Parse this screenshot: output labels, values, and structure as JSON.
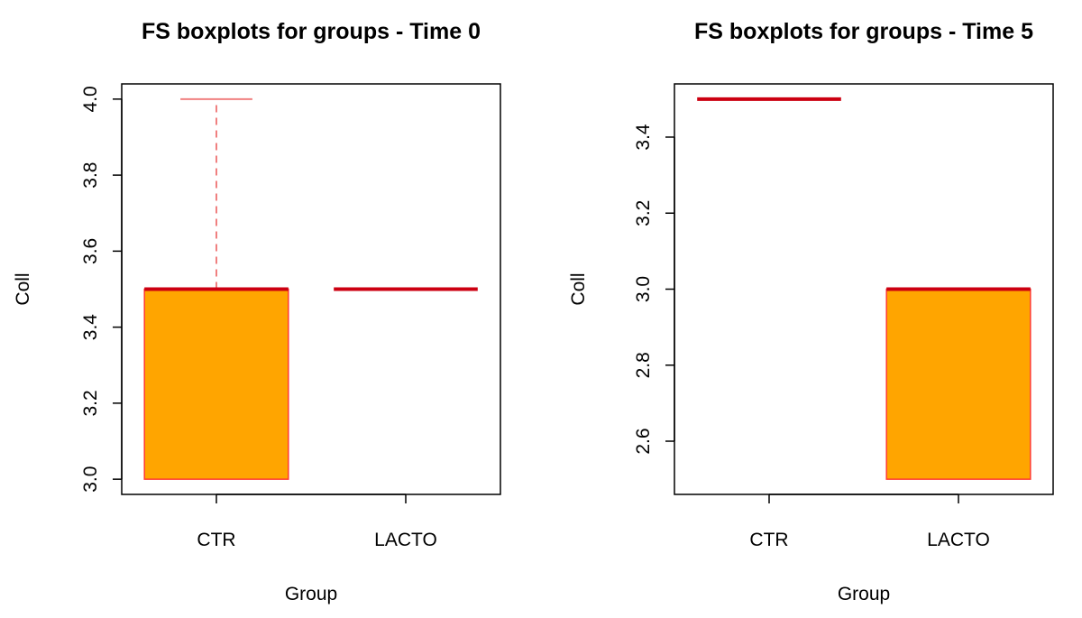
{
  "colors": {
    "box_fill": "#FFA500",
    "box_border": "#FF3B30",
    "median": "#CC0011",
    "whisker": "#F08080",
    "axis": "#000000"
  },
  "chart_data": [
    {
      "type": "boxplot",
      "title": "FS boxplots for groups - Time 0",
      "xlabel": "Group",
      "ylabel": "Coll",
      "categories": [
        "CTR",
        "LACTO"
      ],
      "ylim": [
        2.96,
        4.04
      ],
      "yticks": [
        3.0,
        3.2,
        3.4,
        3.6,
        3.8,
        4.0
      ],
      "ytick_labels": [
        "3.0",
        "3.2",
        "3.4",
        "3.6",
        "3.8",
        "4.0"
      ],
      "boxes": [
        {
          "category": "CTR",
          "min": 3.0,
          "q1": 3.0,
          "median": 3.5,
          "q3": 3.5,
          "max": 4.0
        },
        {
          "category": "LACTO",
          "min": 3.5,
          "q1": 3.5,
          "median": 3.5,
          "q3": 3.5,
          "max": 3.5
        }
      ],
      "grid": false
    },
    {
      "type": "boxplot",
      "title": "FS boxplots for groups - Time 5",
      "xlabel": "Group",
      "ylabel": "Coll",
      "categories": [
        "CTR",
        "LACTO"
      ],
      "ylim": [
        2.46,
        3.54
      ],
      "yticks": [
        2.6,
        2.8,
        3.0,
        3.2,
        3.4
      ],
      "ytick_labels": [
        "2.6",
        "2.8",
        "3.0",
        "3.2",
        "3.4"
      ],
      "boxes": [
        {
          "category": "CTR",
          "min": 3.5,
          "q1": 3.5,
          "median": 3.5,
          "q3": 3.5,
          "max": 3.5
        },
        {
          "category": "LACTO",
          "min": 2.5,
          "q1": 2.5,
          "median": 3.0,
          "q3": 3.0,
          "max": 3.0
        }
      ],
      "grid": false
    }
  ]
}
